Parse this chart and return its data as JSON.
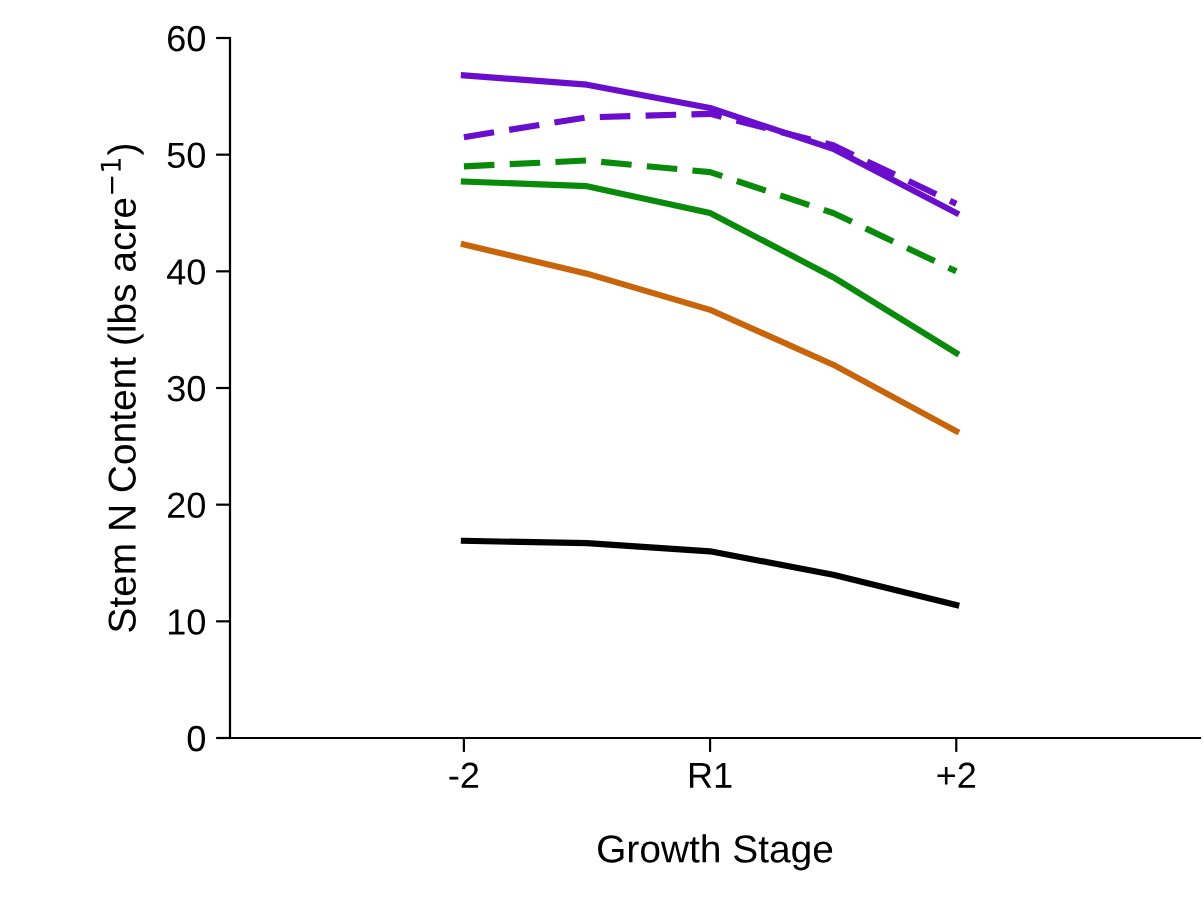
{
  "chart_data": {
    "type": "line",
    "xlabel": "Growth Stage",
    "ylabel": "Stem N Content (lbs acre$^{−1}$)",
    "categories": [
      "-2",
      null,
      "R1",
      null,
      "+2"
    ],
    "ylim": [
      0,
      60
    ],
    "yticks": [
      0,
      10,
      20,
      30,
      40,
      50,
      60
    ],
    "grid": false,
    "legend": false,
    "marker": "none",
    "series": [
      {
        "color": "#6a0dcc",
        "line_style": "solid",
        "values": [
          56.8,
          56.0,
          54.0,
          50.5,
          45.0
        ]
      },
      {
        "color": "#6a0dcc",
        "line_style": "dashed",
        "values": [
          51.5,
          53.2,
          53.5,
          50.8,
          45.8
        ]
      },
      {
        "color": "#0a8a0a",
        "line_style": "dashed",
        "values": [
          49.0,
          49.5,
          48.5,
          45.0,
          40.0
        ]
      },
      {
        "color": "#0a8a0a",
        "line_style": "solid",
        "values": [
          47.7,
          47.3,
          45.0,
          39.5,
          33.0
        ]
      },
      {
        "color": "#c8640a",
        "line_style": "solid",
        "values": [
          42.3,
          39.8,
          36.7,
          32.0,
          26.3
        ]
      },
      {
        "color": "#000000",
        "line_style": "solid",
        "values": [
          16.9,
          16.7,
          16.0,
          14.0,
          11.4
        ]
      }
    ]
  }
}
